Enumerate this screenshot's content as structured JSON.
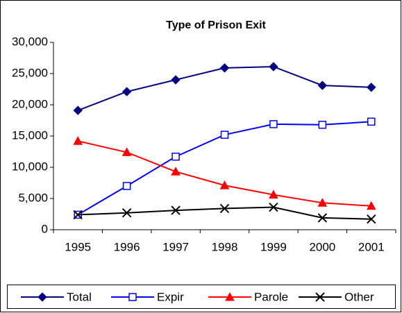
{
  "chart_data": {
    "type": "line",
    "title": "Type of Prison Exit",
    "categories": [
      "1995",
      "1996",
      "1997",
      "1998",
      "1999",
      "2000",
      "2001"
    ],
    "series": [
      {
        "name": "Total",
        "color": "#000080",
        "marker": "diamond",
        "values": [
          19100,
          22100,
          24000,
          25900,
          26100,
          23100,
          22800
        ]
      },
      {
        "name": "Expir",
        "color": "#0000ff",
        "marker": "square",
        "values": [
          2400,
          7000,
          11700,
          15200,
          16900,
          16800,
          17300
        ]
      },
      {
        "name": "Parole",
        "color": "#ff0000",
        "marker": "triangle",
        "values": [
          14200,
          12400,
          9300,
          7100,
          5600,
          4300,
          3800
        ]
      },
      {
        "name": "Other",
        "color": "#000000",
        "marker": "x",
        "values": [
          2400,
          2700,
          3100,
          3400,
          3600,
          1900,
          1700
        ]
      }
    ],
    "ylim": [
      0,
      30000
    ],
    "yticks": [
      0,
      {
        "value": 5000,
        "label": "5,000"
      },
      {
        "value": 10000,
        "label": "10,000"
      },
      {
        "value": 15000,
        "label": "15,000"
      },
      {
        "value": 20000,
        "label": "20,000"
      },
      {
        "value": 25000,
        "label": "25,000"
      },
      {
        "value": 30000,
        "label": "30,000"
      }
    ],
    "grid": false,
    "legend": "bottom"
  }
}
